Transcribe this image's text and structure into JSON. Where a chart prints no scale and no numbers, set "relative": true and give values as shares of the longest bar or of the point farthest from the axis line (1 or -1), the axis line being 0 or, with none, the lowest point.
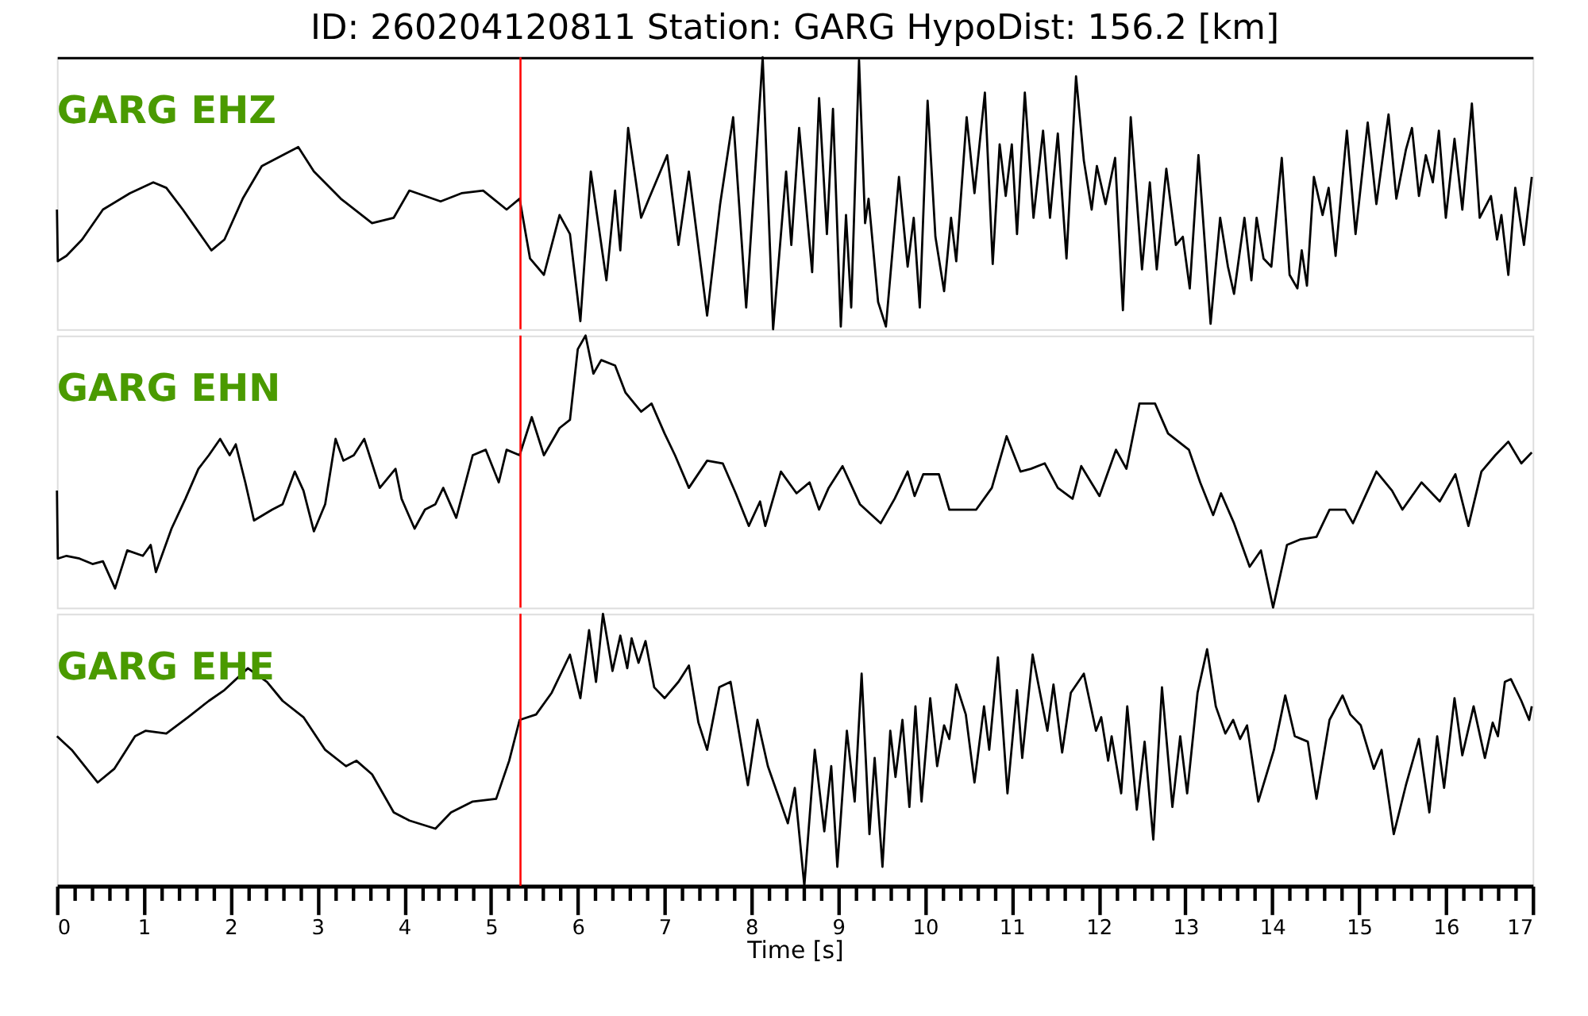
{
  "chart_data": [
    {
      "type": "line",
      "title": "ID: 260204120811 Station: GARG HypoDist: 156.2 [km]",
      "relative": true,
      "xlim": [
        0,
        17
      ],
      "tick_labels": false,
      "grid": false,
      "ref_lines": [
        {
          "axis": "x",
          "value": 5.34,
          "color": "#ff0000"
        }
      ],
      "series": [
        {
          "name": "GARG EHZ",
          "color": "#000000",
          "x": [
            0,
            0.01,
            0.11,
            0.29,
            0.53,
            0.84,
            1.11,
            1.26,
            1.45,
            1.78,
            1.93,
            2.14,
            2.36,
            2.6,
            2.78,
            2.96,
            3.27,
            3.63,
            3.88,
            4.06,
            4.42,
            4.66,
            4.91,
            5.18,
            5.33,
            5.45,
            5.61,
            5.79,
            5.91,
            6.03,
            6.15,
            6.33,
            6.43,
            6.49,
            6.58,
            6.73,
            6.82,
            7.03,
            7.16,
            7.28,
            7.49,
            7.64,
            7.79,
            7.94,
            8.13,
            8.25,
            8.4,
            8.46,
            8.55,
            8.7,
            8.78,
            8.87,
            8.94,
            9.03,
            9.09,
            9.15,
            9.24,
            9.31,
            9.35,
            9.46,
            9.55,
            9.7,
            9.8,
            9.87,
            9.94,
            10.03,
            10.12,
            10.22,
            10.3,
            10.36,
            10.48,
            10.57,
            10.69,
            10.78,
            10.86,
            10.93,
            11.0,
            11.06,
            11.15,
            11.25,
            11.36,
            11.44,
            11.53,
            11.63,
            11.74,
            11.83,
            11.92,
            11.98,
            12.08,
            12.19,
            12.28,
            12.37,
            12.5,
            12.59,
            12.67,
            12.78,
            12.89,
            12.97,
            13.05,
            13.15,
            13.29,
            13.4,
            13.49,
            13.56,
            13.68,
            13.76,
            13.82,
            13.9,
            13.99,
            14.11,
            14.2,
            14.29,
            14.34,
            14.4,
            14.48,
            14.58,
            14.65,
            14.73,
            14.86,
            14.96,
            15.1,
            15.2,
            15.34,
            15.43,
            15.54,
            15.61,
            15.69,
            15.77,
            15.85,
            15.92,
            16.0,
            16.1,
            16.19,
            16.3,
            16.39,
            16.52,
            16.59,
            16.64,
            16.72,
            16.8,
            16.9,
            16.99
          ],
          "values": [
            0.44,
            0.25,
            0.27,
            0.33,
            0.44,
            0.5,
            0.54,
            0.52,
            0.44,
            0.29,
            0.33,
            0.48,
            0.6,
            0.64,
            0.67,
            0.58,
            0.48,
            0.39,
            0.41,
            0.51,
            0.47,
            0.5,
            0.51,
            0.44,
            0.48,
            0.26,
            0.2,
            0.42,
            0.35,
            0.03,
            0.58,
            0.18,
            0.51,
            0.29,
            0.74,
            0.41,
            0.48,
            0.64,
            0.31,
            0.58,
            0.05,
            0.46,
            0.78,
            0.08,
            1.0,
            0.0,
            0.58,
            0.31,
            0.74,
            0.21,
            0.85,
            0.35,
            0.81,
            0.01,
            0.42,
            0.08,
            0.99,
            0.39,
            0.48,
            0.1,
            0.01,
            0.56,
            0.23,
            0.41,
            0.08,
            0.84,
            0.34,
            0.14,
            0.41,
            0.25,
            0.78,
            0.5,
            0.87,
            0.24,
            0.68,
            0.49,
            0.68,
            0.35,
            0.87,
            0.41,
            0.73,
            0.41,
            0.72,
            0.26,
            0.93,
            0.62,
            0.44,
            0.6,
            0.46,
            0.63,
            0.07,
            0.78,
            0.22,
            0.54,
            0.22,
            0.59,
            0.31,
            0.34,
            0.15,
            0.64,
            0.02,
            0.41,
            0.23,
            0.13,
            0.41,
            0.18,
            0.41,
            0.26,
            0.23,
            0.63,
            0.2,
            0.15,
            0.29,
            0.16,
            0.56,
            0.42,
            0.52,
            0.27,
            0.73,
            0.35,
            0.76,
            0.46,
            0.79,
            0.48,
            0.66,
            0.74,
            0.49,
            0.64,
            0.54,
            0.73,
            0.41,
            0.7,
            0.44,
            0.83,
            0.41,
            0.49,
            0.33,
            0.42,
            0.2,
            0.52,
            0.31,
            0.56
          ]
        }
      ]
    },
    {
      "type": "line",
      "relative": true,
      "xlim": [
        0,
        17
      ],
      "tick_labels": false,
      "grid": false,
      "ref_lines": [
        {
          "axis": "x",
          "value": 5.34,
          "color": "#ff0000"
        }
      ],
      "series": [
        {
          "name": "GARG EHN",
          "color": "#000000",
          "x": [
            0,
            0.01,
            0.11,
            0.26,
            0.41,
            0.53,
            0.67,
            0.81,
            0.99,
            1.08,
            1.14,
            1.32,
            1.48,
            1.63,
            1.75,
            1.88,
            1.99,
            2.06,
            2.17,
            2.27,
            2.48,
            2.6,
            2.74,
            2.84,
            2.96,
            3.09,
            3.21,
            3.3,
            3.42,
            3.54,
            3.72,
            3.9,
            3.97,
            4.12,
            4.24,
            4.36,
            4.45,
            4.6,
            4.79,
            4.94,
            5.09,
            5.18,
            5.33,
            5.47,
            5.61,
            5.79,
            5.91,
            6.0,
            6.09,
            6.18,
            6.27,
            6.43,
            6.55,
            6.73,
            6.85,
            7.0,
            7.12,
            7.28,
            7.49,
            7.67,
            7.82,
            7.97,
            8.1,
            8.16,
            8.34,
            8.52,
            8.67,
            8.78,
            8.89,
            9.05,
            9.25,
            9.49,
            9.65,
            9.8,
            9.88,
            9.98,
            10.16,
            10.28,
            10.59,
            10.77,
            10.94,
            11.1,
            11.22,
            11.38,
            11.53,
            11.7,
            11.8,
            12.01,
            12.2,
            12.32,
            12.47,
            12.65,
            12.8,
            13.04,
            13.17,
            13.32,
            13.41,
            13.56,
            13.74,
            13.87,
            14.01,
            14.17,
            14.32,
            14.51,
            14.66,
            14.84,
            14.93,
            15.2,
            15.38,
            15.5,
            15.72,
            15.93,
            16.11,
            16.26,
            16.41,
            16.57,
            16.72,
            16.87,
            16.99
          ],
          "values": [
            0.43,
            0.18,
            0.19,
            0.18,
            0.16,
            0.17,
            0.07,
            0.21,
            0.19,
            0.23,
            0.13,
            0.29,
            0.4,
            0.51,
            0.56,
            0.62,
            0.56,
            0.6,
            0.46,
            0.32,
            0.36,
            0.38,
            0.5,
            0.43,
            0.28,
            0.38,
            0.62,
            0.54,
            0.56,
            0.62,
            0.44,
            0.51,
            0.4,
            0.29,
            0.36,
            0.38,
            0.44,
            0.33,
            0.56,
            0.58,
            0.46,
            0.58,
            0.56,
            0.7,
            0.56,
            0.66,
            0.69,
            0.95,
            1.0,
            0.86,
            0.91,
            0.89,
            0.79,
            0.72,
            0.75,
            0.64,
            0.56,
            0.44,
            0.54,
            0.53,
            0.42,
            0.3,
            0.39,
            0.3,
            0.5,
            0.42,
            0.46,
            0.36,
            0.44,
            0.52,
            0.38,
            0.31,
            0.4,
            0.5,
            0.41,
            0.49,
            0.49,
            0.36,
            0.36,
            0.44,
            0.63,
            0.5,
            0.51,
            0.53,
            0.44,
            0.4,
            0.52,
            0.41,
            0.58,
            0.51,
            0.75,
            0.75,
            0.64,
            0.58,
            0.46,
            0.34,
            0.42,
            0.31,
            0.15,
            0.21,
            0.0,
            0.23,
            0.25,
            0.26,
            0.36,
            0.36,
            0.31,
            0.5,
            0.43,
            0.36,
            0.46,
            0.39,
            0.49,
            0.3,
            0.5,
            0.56,
            0.61,
            0.53,
            0.57
          ]
        }
      ]
    },
    {
      "type": "line",
      "relative": true,
      "xlabel": "Time [s]",
      "xlim": [
        0,
        17
      ],
      "tick_labels": "x",
      "grid": false,
      "xticks": [
        0,
        {
          "value": 0.2,
          "label": null
        },
        {
          "value": 0.4,
          "label": null
        },
        {
          "value": 0.6,
          "label": null
        },
        {
          "value": 0.8,
          "label": null
        },
        1,
        {
          "value": 1.2,
          "label": null
        },
        {
          "value": 1.4,
          "label": null
        },
        {
          "value": 1.6,
          "label": null
        },
        {
          "value": 1.8,
          "label": null
        },
        2,
        {
          "value": 2.2,
          "label": null
        },
        {
          "value": 2.4,
          "label": null
        },
        {
          "value": 2.6,
          "label": null
        },
        {
          "value": 2.8,
          "label": null
        },
        3,
        {
          "value": 3.2,
          "label": null
        },
        {
          "value": 3.4,
          "label": null
        },
        {
          "value": 3.6,
          "label": null
        },
        {
          "value": 3.8,
          "label": null
        },
        4,
        {
          "value": 4.2,
          "label": null
        },
        {
          "value": 4.4,
          "label": null
        },
        {
          "value": 4.6,
          "label": null
        },
        {
          "value": 4.8,
          "label": null
        },
        5,
        {
          "value": 5.2,
          "label": null
        },
        {
          "value": 5.4,
          "label": null
        },
        {
          "value": 5.6,
          "label": null
        },
        {
          "value": 5.8,
          "label": null
        },
        6,
        {
          "value": 6.2,
          "label": null
        },
        {
          "value": 6.4,
          "label": null
        },
        {
          "value": 6.6,
          "label": null
        },
        {
          "value": 6.8,
          "label": null
        },
        7,
        {
          "value": 7.2,
          "label": null
        },
        {
          "value": 7.4,
          "label": null
        },
        {
          "value": 7.6,
          "label": null
        },
        {
          "value": 7.8,
          "label": null
        },
        8,
        {
          "value": 8.2,
          "label": null
        },
        {
          "value": 8.4,
          "label": null
        },
        {
          "value": 8.6,
          "label": null
        },
        {
          "value": 8.8,
          "label": null
        },
        9,
        {
          "value": 9.2,
          "label": null
        },
        {
          "value": 9.4,
          "label": null
        },
        {
          "value": 9.6,
          "label": null
        },
        {
          "value": 9.8,
          "label": null
        },
        10,
        {
          "value": 10.2,
          "label": null
        },
        {
          "value": 10.4,
          "label": null
        },
        {
          "value": 10.6,
          "label": null
        },
        {
          "value": 10.8,
          "label": null
        },
        11,
        {
          "value": 11.2,
          "label": null
        },
        {
          "value": 11.4,
          "label": null
        },
        {
          "value": 11.6,
          "label": null
        },
        {
          "value": 11.8,
          "label": null
        },
        12,
        {
          "value": 12.2,
          "label": null
        },
        {
          "value": 12.4,
          "label": null
        },
        {
          "value": 12.6,
          "label": null
        },
        {
          "value": 12.8,
          "label": null
        },
        13,
        {
          "value": 13.2,
          "label": null
        },
        {
          "value": 13.4,
          "label": null
        },
        {
          "value": 13.6,
          "label": null
        },
        {
          "value": 13.8,
          "label": null
        },
        14,
        {
          "value": 14.2,
          "label": null
        },
        {
          "value": 14.4,
          "label": null
        },
        {
          "value": 14.6,
          "label": null
        },
        {
          "value": 14.8,
          "label": null
        },
        15,
        {
          "value": 15.2,
          "label": null
        },
        {
          "value": 15.4,
          "label": null
        },
        {
          "value": 15.6,
          "label": null
        },
        {
          "value": 15.8,
          "label": null
        },
        16,
        {
          "value": 16.2,
          "label": null
        },
        {
          "value": 16.4,
          "label": null
        },
        {
          "value": 16.6,
          "label": null
        },
        {
          "value": 16.8,
          "label": null
        },
        17
      ],
      "ref_lines": [
        {
          "axis": "x",
          "value": 5.34,
          "color": "#ff0000"
        }
      ],
      "series": [
        {
          "name": "GARG EHE",
          "color": "#000000",
          "x": [
            0,
            0.17,
            0.47,
            0.66,
            0.9,
            1.02,
            1.26,
            1.51,
            1.75,
            1.93,
            2.2,
            2.42,
            2.6,
            2.84,
            3.09,
            3.33,
            3.45,
            3.63,
            3.88,
            4.06,
            4.36,
            4.54,
            4.79,
            5.06,
            5.21,
            5.33,
            5.52,
            5.7,
            5.91,
            6.03,
            6.13,
            6.21,
            6.29,
            6.4,
            6.49,
            6.57,
            6.62,
            6.7,
            6.78,
            6.88,
            7.0,
            7.16,
            7.28,
            7.39,
            7.49,
            7.63,
            7.76,
            7.96,
            8.07,
            8.19,
            8.42,
            8.5,
            8.61,
            8.73,
            8.84,
            8.92,
            8.99,
            9.1,
            9.19,
            9.27,
            9.36,
            9.42,
            9.51,
            9.6,
            9.66,
            9.74,
            9.82,
            9.89,
            9.96,
            10.06,
            10.14,
            10.22,
            10.28,
            10.36,
            10.47,
            10.57,
            10.68,
            10.74,
            10.84,
            10.95,
            11.06,
            11.12,
            11.24,
            11.41,
            11.48,
            11.58,
            11.68,
            11.83,
            11.97,
            12.03,
            12.11,
            12.15,
            12.26,
            12.33,
            12.44,
            12.53,
            12.63,
            12.73,
            12.85,
            12.94,
            13.02,
            13.14,
            13.25,
            13.35,
            13.46,
            13.55,
            13.63,
            13.71,
            13.84,
            14.02,
            14.15,
            14.26,
            14.41,
            14.51,
            14.66,
            14.81,
            14.9,
            15.02,
            15.17,
            15.26,
            15.4,
            15.54,
            15.69,
            15.81,
            15.9,
            15.98,
            16.1,
            16.19,
            16.32,
            16.45,
            16.54,
            16.6,
            16.68,
            16.75,
            16.87,
            16.96,
            16.99
          ],
          "values": [
            0.55,
            0.5,
            0.38,
            0.43,
            0.55,
            0.57,
            0.56,
            0.62,
            0.68,
            0.72,
            0.8,
            0.75,
            0.68,
            0.62,
            0.5,
            0.44,
            0.46,
            0.41,
            0.27,
            0.24,
            0.21,
            0.27,
            0.31,
            0.32,
            0.46,
            0.61,
            0.63,
            0.71,
            0.85,
            0.69,
            0.94,
            0.75,
            1.0,
            0.79,
            0.92,
            0.8,
            0.91,
            0.82,
            0.9,
            0.73,
            0.69,
            0.75,
            0.81,
            0.6,
            0.5,
            0.73,
            0.75,
            0.37,
            0.61,
            0.44,
            0.23,
            0.36,
            0.0,
            0.5,
            0.2,
            0.44,
            0.07,
            0.57,
            0.31,
            0.78,
            0.19,
            0.47,
            0.07,
            0.57,
            0.4,
            0.61,
            0.29,
            0.66,
            0.31,
            0.69,
            0.44,
            0.59,
            0.54,
            0.74,
            0.63,
            0.38,
            0.66,
            0.5,
            0.84,
            0.34,
            0.72,
            0.47,
            0.85,
            0.57,
            0.74,
            0.49,
            0.71,
            0.78,
            0.57,
            0.62,
            0.46,
            0.55,
            0.34,
            0.66,
            0.28,
            0.53,
            0.17,
            0.73,
            0.29,
            0.55,
            0.34,
            0.71,
            0.87,
            0.66,
            0.56,
            0.61,
            0.54,
            0.59,
            0.31,
            0.5,
            0.7,
            0.55,
            0.53,
            0.32,
            0.61,
            0.7,
            0.63,
            0.59,
            0.43,
            0.5,
            0.19,
            0.37,
            0.54,
            0.27,
            0.55,
            0.36,
            0.69,
            0.48,
            0.66,
            0.47,
            0.6,
            0.55,
            0.75,
            0.76,
            0.68,
            0.61,
            0.66
          ]
        }
      ]
    }
  ]
}
